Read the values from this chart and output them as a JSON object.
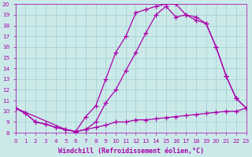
{
  "xlabel": "Windchill (Refroidissement éolien,°C)",
  "bg_color": "#cbe9e9",
  "line_color": "#aa00aa",
  "grid_color": "#9dcfcf",
  "line1_x": [
    0,
    1,
    2,
    3,
    4,
    5,
    6,
    7,
    8,
    9,
    10,
    11,
    12,
    13,
    14,
    15,
    16,
    17,
    18,
    19,
    20,
    21,
    22,
    23
  ],
  "line1_y": [
    10.3,
    9.8,
    9.0,
    8.8,
    8.5,
    8.3,
    8.1,
    8.3,
    8.5,
    8.7,
    9.0,
    9.0,
    9.2,
    9.2,
    9.3,
    9.4,
    9.5,
    9.6,
    9.7,
    9.8,
    9.9,
    10.0,
    10.0,
    10.3
  ],
  "line2_x": [
    0,
    1,
    2,
    3,
    4,
    5,
    6,
    7,
    8,
    9,
    10,
    11,
    12,
    13,
    14,
    15,
    16,
    17,
    18,
    19,
    20,
    21,
    22,
    23
  ],
  "line2_y": [
    10.3,
    9.8,
    9.0,
    8.8,
    8.5,
    8.3,
    8.1,
    9.5,
    10.5,
    13.0,
    15.5,
    17.0,
    19.2,
    19.5,
    19.8,
    20.0,
    20.0,
    19.0,
    18.8,
    18.2,
    16.0,
    13.3,
    11.2,
    10.3
  ],
  "line3_x": [
    0,
    5,
    6,
    7,
    8,
    9,
    10,
    11,
    12,
    13,
    14,
    15,
    16,
    17,
    18,
    19,
    20,
    21,
    22,
    23
  ],
  "line3_y": [
    10.3,
    8.3,
    8.1,
    8.3,
    9.0,
    10.8,
    12.0,
    13.8,
    15.5,
    17.3,
    19.0,
    19.8,
    18.8,
    19.0,
    18.5,
    18.2,
    16.0,
    13.3,
    11.2,
    10.3
  ],
  "xlim": [
    0,
    23
  ],
  "ylim": [
    8,
    20
  ],
  "yticks": [
    8,
    9,
    10,
    11,
    12,
    13,
    14,
    15,
    16,
    17,
    18,
    19,
    20
  ],
  "xticks": [
    0,
    1,
    2,
    3,
    4,
    5,
    6,
    7,
    8,
    9,
    10,
    11,
    12,
    13,
    14,
    15,
    16,
    17,
    18,
    19,
    20,
    21,
    22,
    23
  ],
  "marker": "+",
  "markersize": 4,
  "linewidth": 0.9,
  "tick_fontsize": 5.2,
  "xlabel_fontsize": 6.0
}
